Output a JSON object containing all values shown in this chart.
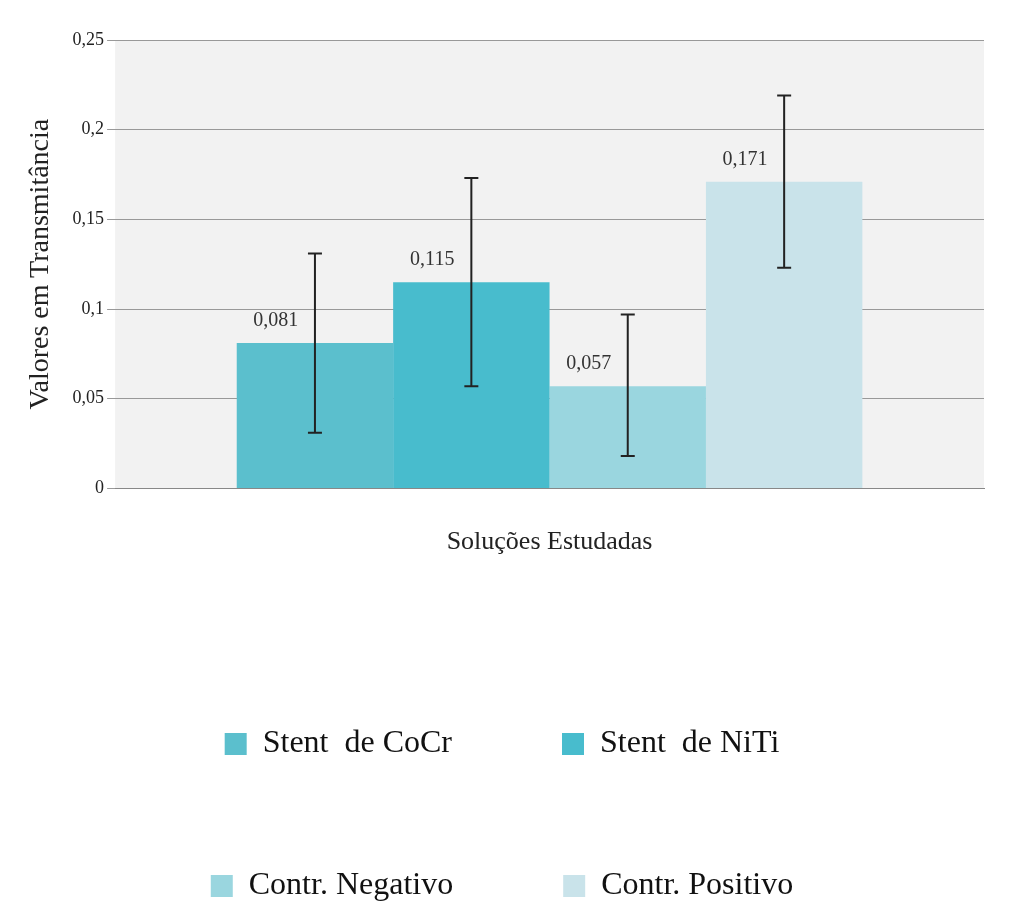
{
  "chart_data": {
    "type": "bar",
    "xlabel": "Soluções Estudadas",
    "ylabel": "Valores em Transmitância",
    "categories": [
      null
    ],
    "series": [
      {
        "name": "Stent  de CoCr",
        "color": "#5bbfcd",
        "values": [
          0.081
        ],
        "errors": [
          [
            0.031,
            0.131
          ]
        ],
        "value_labels": [
          "0,081"
        ]
      },
      {
        "name": "Stent  de NiTi",
        "color": "#48bccd",
        "values": [
          0.115
        ],
        "errors": [
          [
            0.057,
            0.173
          ]
        ],
        "value_labels": [
          "0,115"
        ]
      },
      {
        "name": "Contr. Negativo",
        "color": "#9ad6df",
        "values": [
          0.057
        ],
        "errors": [
          [
            0.018,
            0.097
          ]
        ],
        "value_labels": [
          "0,057"
        ]
      },
      {
        "name": "Contr. Positivo",
        "color": "#c9e3ea",
        "values": [
          0.171
        ],
        "errors": [
          [
            0.123,
            0.219
          ]
        ],
        "value_labels": [
          "0,171"
        ]
      }
    ],
    "ylim": [
      0,
      0.25
    ],
    "yticks": [
      {
        "value": 0,
        "label": "0"
      },
      {
        "value": 0.05,
        "label": "0,05"
      },
      {
        "value": 0.1,
        "label": "0,1"
      },
      {
        "value": 0.15,
        "label": "0,15"
      },
      {
        "value": 0.2,
        "label": "0,2"
      },
      {
        "value": 0.25,
        "label": "0,25"
      }
    ],
    "grid": "y",
    "legend": "bottom"
  }
}
